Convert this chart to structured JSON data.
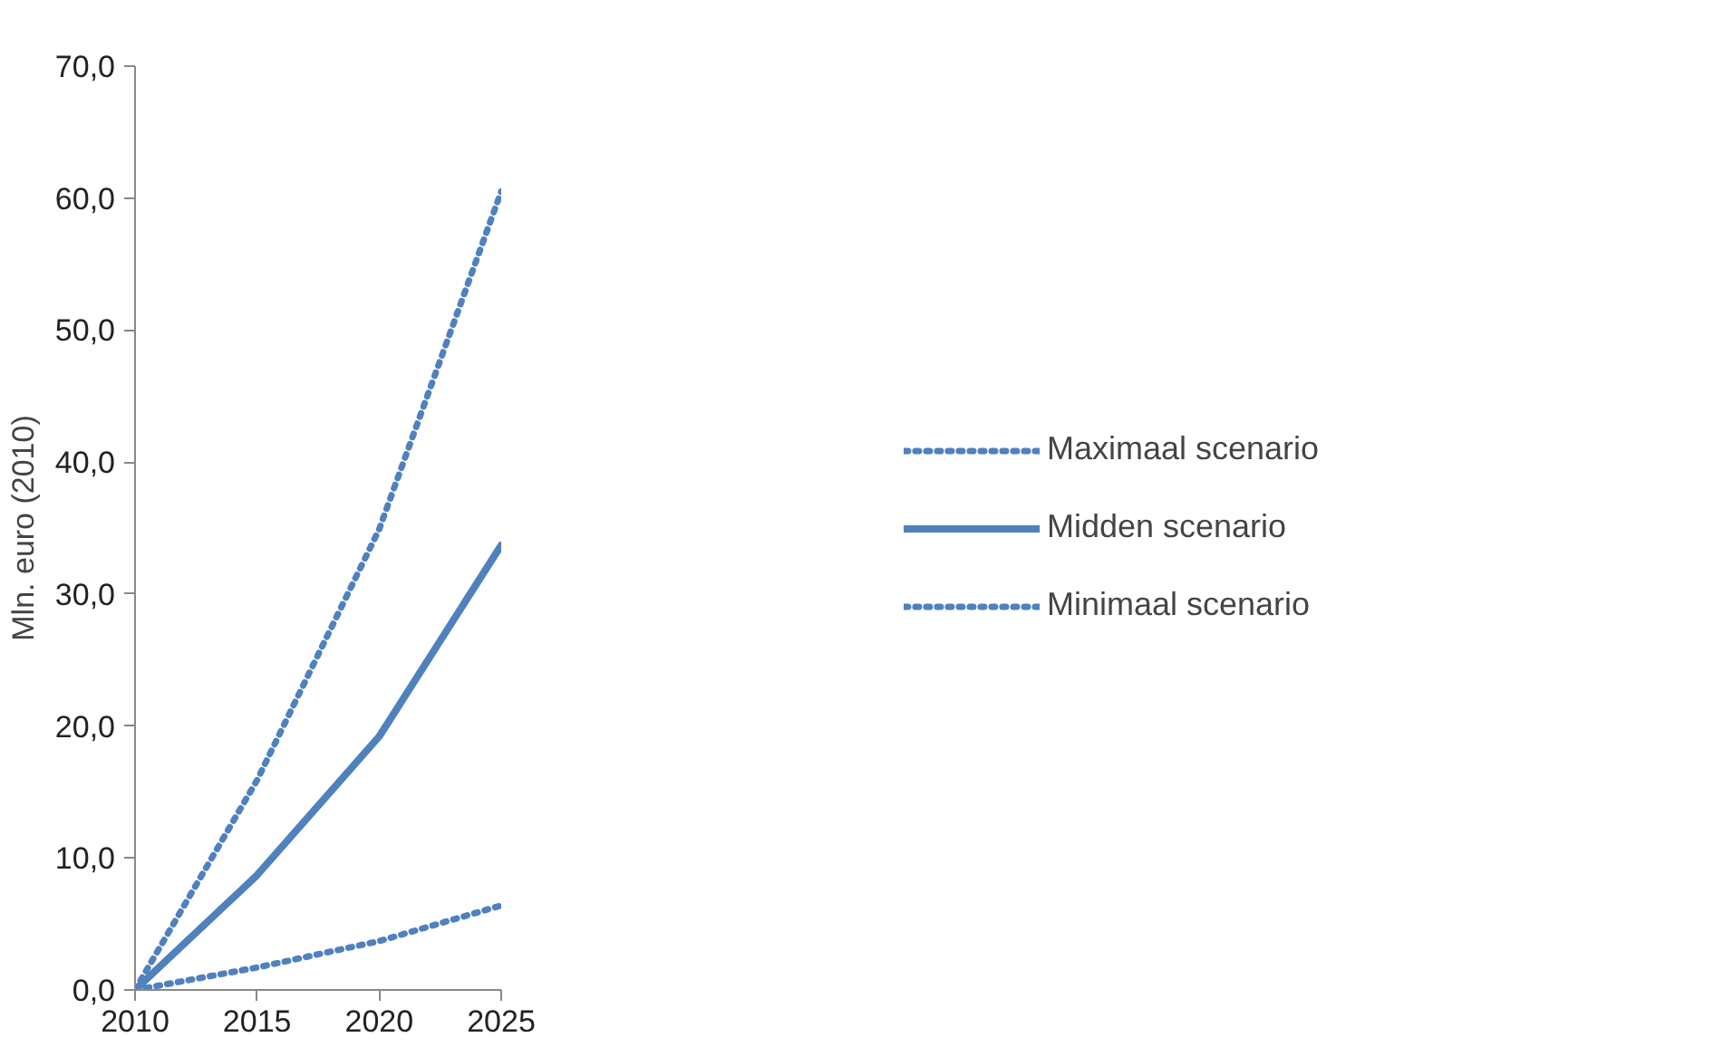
{
  "chart_data": {
    "type": "line",
    "ylabel": "Mln. euro (2010)",
    "x": [
      2010,
      2015,
      2020,
      2025
    ],
    "xlim": [
      2010,
      2025
    ],
    "xticks": [
      2010,
      2015,
      2020,
      2025
    ],
    "ylim": [
      0,
      70
    ],
    "yticks": [
      {
        "value": 0,
        "label": "0,0"
      },
      {
        "value": 10,
        "label": "10,0"
      },
      {
        "value": 20,
        "label": "20,0"
      },
      {
        "value": 30,
        "label": "30,0"
      },
      {
        "value": 40,
        "label": "40,0"
      },
      {
        "value": 50,
        "label": "50,0"
      },
      {
        "value": 60,
        "label": "60,0"
      },
      {
        "value": 70,
        "label": "70,0"
      }
    ],
    "grid": false,
    "legend": "right",
    "series": [
      {
        "name": "Maximaal scenario",
        "color": "#4f81bd",
        "line_style": "dotted",
        "values": [
          0,
          15.9,
          34.9,
          60.5
        ]
      },
      {
        "name": "Midden scenario",
        "color": "#4f81bd",
        "line_style": "solid",
        "values": [
          0,
          8.7,
          19.2,
          33.7
        ]
      },
      {
        "name": "Minimaal scenario",
        "color": "#4f81bd",
        "line_style": "dotted",
        "values": [
          0,
          1.7,
          3.7,
          6.4
        ]
      }
    ]
  }
}
